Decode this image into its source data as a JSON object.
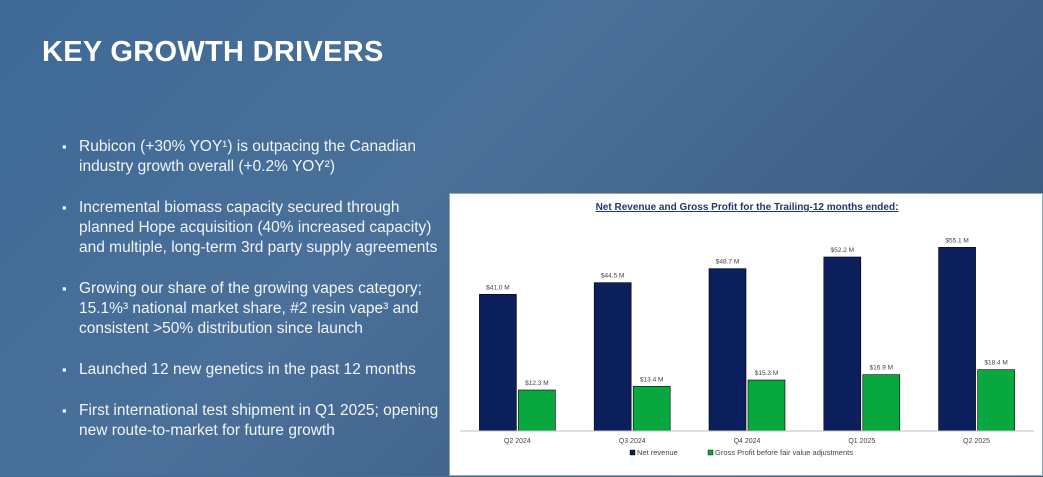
{
  "slide": {
    "title": "KEY GROWTH DRIVERS",
    "bullets": [
      "Rubicon (+30% YOY¹) is outpacing the Canadian industry growth overall (+0.2% YOY²)",
      "Incremental biomass capacity secured through planned Hope acquisition (40% increased capacity) and multiple, long-term 3rd party supply agreements",
      "Growing our share of the growing vapes category; 15.1%³ national market share, #2 resin vape³ and consistent >50% distribution since launch",
      "Launched 12 new genetics in the past 12 months",
      "First international test shipment in Q1 2025; opening new route-to-market for future growth"
    ]
  },
  "colors": {
    "net_revenue": "#0b1f5c",
    "gross_profit": "#08a83e"
  },
  "chart_data": {
    "type": "bar",
    "title": "Net Revenue and Gross Profit for the Trailing-12 months ended:",
    "categories": [
      "Q2 2024",
      "Q3 2024",
      "Q4 2024",
      "Q1 2025",
      "Q2 2025"
    ],
    "series": [
      {
        "name": "Net revenue",
        "values": [
          41.0,
          44.5,
          48.7,
          52.2,
          55.1
        ],
        "labels": [
          "$41.0 M",
          "$44.5 M",
          "$48.7 M",
          "$52.2 M",
          "$55.1 M"
        ]
      },
      {
        "name": "Gross Profit before fair value adjustments",
        "values": [
          12.3,
          13.4,
          15.3,
          16.9,
          18.4
        ],
        "labels": [
          "$12.3 M",
          "$13.4 M",
          "$15.3 M",
          "$16.9 M",
          "$18.4 M"
        ]
      }
    ],
    "ylim": [
      0,
      60
    ],
    "legend": "bottom"
  }
}
